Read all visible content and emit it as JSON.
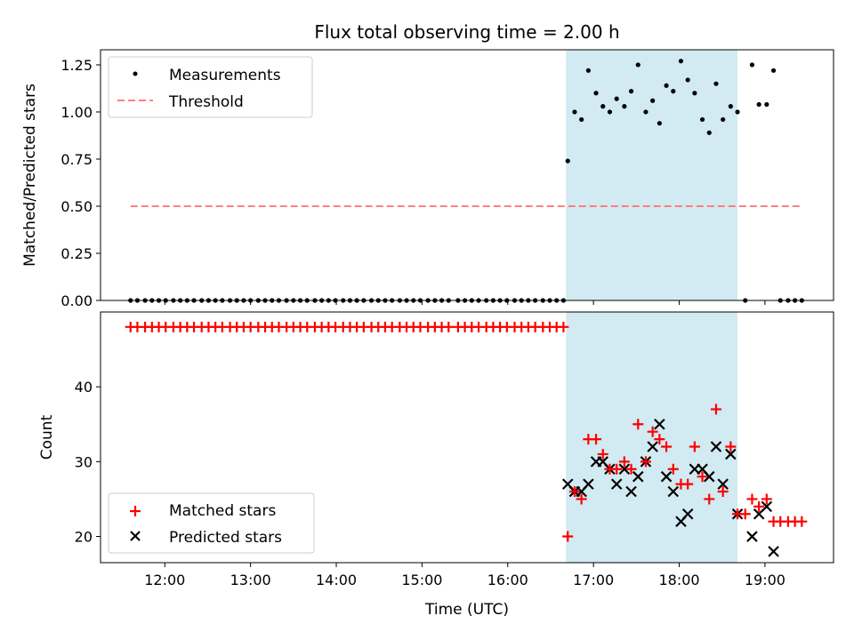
{
  "figure": {
    "title": "Flux total observing time = 2.00 h",
    "xlabel": "Time (UTC)",
    "xticks": [
      "12:00",
      "13:00",
      "14:00",
      "15:00",
      "16:00",
      "17:00",
      "18:00",
      "19:00"
    ],
    "xlim_hours": [
      11.25,
      19.8
    ]
  },
  "chart_data": [
    {
      "type": "scatter",
      "panel": "top",
      "ylabel": "Matched/Predicted stars",
      "ylim": [
        0,
        1.33
      ],
      "yticks": [
        "0.00",
        "0.25",
        "0.50",
        "0.75",
        "1.00",
        "1.25"
      ],
      "ytick_values": [
        0,
        0.25,
        0.5,
        0.75,
        1.0,
        1.25
      ],
      "legend_position": "top-left",
      "shaded_region": {
        "x_start_hours": 16.68,
        "x_end_hours": 18.68,
        "color": "#add8e6"
      },
      "series": [
        {
          "name": "Measurements",
          "color": "#000000",
          "marker": "dot",
          "x_hours": [
            11.6,
            11.68,
            11.77,
            11.85,
            11.93,
            12.01,
            12.1,
            12.18,
            12.26,
            12.34,
            12.43,
            12.51,
            12.59,
            12.67,
            12.76,
            12.84,
            12.92,
            13.0,
            13.09,
            13.17,
            13.25,
            13.33,
            13.42,
            13.5,
            13.58,
            13.66,
            13.75,
            13.83,
            13.91,
            13.99,
            14.08,
            14.16,
            14.24,
            14.32,
            14.41,
            14.49,
            14.57,
            14.65,
            14.74,
            14.82,
            14.9,
            14.98,
            15.07,
            15.15,
            15.23,
            15.31,
            15.42,
            15.5,
            15.58,
            15.66,
            15.75,
            15.83,
            15.91,
            15.99,
            16.08,
            16.16,
            16.24,
            16.32,
            16.41,
            16.49,
            16.57,
            16.65,
            16.7,
            16.78,
            16.86,
            16.94,
            17.03,
            17.11,
            17.19,
            17.27,
            17.36,
            17.44,
            17.52,
            17.61,
            17.69,
            17.77,
            17.85,
            17.93,
            18.02,
            18.1,
            18.18,
            18.27,
            18.35,
            18.43,
            18.51,
            18.6,
            18.68,
            18.77,
            18.85,
            18.93,
            19.02,
            19.1,
            19.18,
            19.27,
            19.35,
            19.43
          ],
          "y": [
            0,
            0,
            0,
            0,
            0,
            0,
            0,
            0,
            0,
            0,
            0,
            0,
            0,
            0,
            0,
            0,
            0,
            0,
            0,
            0,
            0,
            0,
            0,
            0,
            0,
            0,
            0,
            0,
            0,
            0,
            0,
            0,
            0,
            0,
            0,
            0,
            0,
            0,
            0,
            0,
            0,
            0,
            0,
            0,
            0,
            0,
            0,
            0,
            0,
            0,
            0,
            0,
            0,
            0,
            0,
            0,
            0,
            0,
            0,
            0,
            0,
            0,
            0.74,
            1.0,
            0.96,
            1.22,
            1.1,
            1.03,
            1.0,
            1.07,
            1.03,
            1.11,
            1.25,
            1.0,
            1.06,
            0.94,
            1.14,
            1.11,
            1.27,
            1.17,
            1.1,
            0.96,
            0.89,
            1.15,
            0.96,
            1.03,
            1.0,
            0,
            1.25,
            1.04,
            1.04,
            1.22,
            0,
            0,
            0,
            0
          ]
        },
        {
          "name": "Threshold",
          "color": "#ff7f7f",
          "marker": "dashed-line",
          "x_hours": [
            11.6,
            19.43
          ],
          "y": [
            0.5,
            0.5
          ]
        }
      ]
    },
    {
      "type": "scatter",
      "panel": "bottom",
      "ylabel": "Count",
      "ylim": [
        16.5,
        50
      ],
      "yticks": [
        "20",
        "30",
        "40"
      ],
      "ytick_values": [
        20,
        30,
        40
      ],
      "legend_position": "bottom-left",
      "shaded_region": {
        "x_start_hours": 16.68,
        "x_end_hours": 18.68,
        "color": "#add8e6"
      },
      "series": [
        {
          "name": "Matched stars",
          "color": "#ff0000",
          "marker": "plus",
          "x_hours": [
            11.6,
            11.68,
            11.77,
            11.85,
            11.93,
            12.01,
            12.1,
            12.18,
            12.26,
            12.34,
            12.43,
            12.51,
            12.59,
            12.67,
            12.76,
            12.84,
            12.92,
            13.0,
            13.09,
            13.17,
            13.25,
            13.33,
            13.42,
            13.5,
            13.58,
            13.66,
            13.75,
            13.83,
            13.91,
            13.99,
            14.08,
            14.16,
            14.24,
            14.32,
            14.41,
            14.49,
            14.57,
            14.65,
            14.74,
            14.82,
            14.9,
            14.98,
            15.07,
            15.15,
            15.23,
            15.31,
            15.42,
            15.5,
            15.58,
            15.66,
            15.75,
            15.83,
            15.91,
            15.99,
            16.08,
            16.16,
            16.24,
            16.32,
            16.41,
            16.49,
            16.57,
            16.65,
            16.7,
            16.78,
            16.86,
            16.94,
            17.03,
            17.11,
            17.19,
            17.27,
            17.36,
            17.44,
            17.52,
            17.61,
            17.69,
            17.77,
            17.85,
            17.93,
            18.02,
            18.1,
            18.18,
            18.27,
            18.35,
            18.43,
            18.51,
            18.6,
            18.68,
            18.77,
            18.85,
            18.93,
            19.02,
            19.1,
            19.18,
            19.27,
            19.35,
            19.43
          ],
          "y": [
            48,
            48,
            48,
            48,
            48,
            48,
            48,
            48,
            48,
            48,
            48,
            48,
            48,
            48,
            48,
            48,
            48,
            48,
            48,
            48,
            48,
            48,
            48,
            48,
            48,
            48,
            48,
            48,
            48,
            48,
            48,
            48,
            48,
            48,
            48,
            48,
            48,
            48,
            48,
            48,
            48,
            48,
            48,
            48,
            48,
            48,
            48,
            48,
            48,
            48,
            48,
            48,
            48,
            48,
            48,
            48,
            48,
            48,
            48,
            48,
            48,
            48,
            20,
            26,
            25,
            33,
            33,
            31,
            29,
            29,
            30,
            29,
            35,
            30,
            34,
            33,
            32,
            29,
            27,
            27,
            32,
            28,
            25,
            37,
            26,
            32,
            23,
            23,
            25,
            24,
            25,
            22,
            22,
            22,
            22,
            22
          ]
        },
        {
          "name": "Predicted stars",
          "color": "#000000",
          "marker": "x",
          "x_hours": [
            16.7,
            16.78,
            16.86,
            16.94,
            17.03,
            17.11,
            17.19,
            17.27,
            17.36,
            17.44,
            17.52,
            17.61,
            17.69,
            17.77,
            17.85,
            17.93,
            18.02,
            18.1,
            18.18,
            18.27,
            18.35,
            18.43,
            18.51,
            18.6,
            18.68,
            18.85,
            18.93,
            19.02,
            19.1
          ],
          "y": [
            27,
            26,
            26,
            27,
            30,
            30,
            29,
            27,
            29,
            26,
            28,
            30,
            32,
            35,
            28,
            26,
            22,
            23,
            29,
            29,
            28,
            32,
            27,
            31,
            23,
            20,
            23,
            24,
            18
          ]
        }
      ]
    }
  ]
}
